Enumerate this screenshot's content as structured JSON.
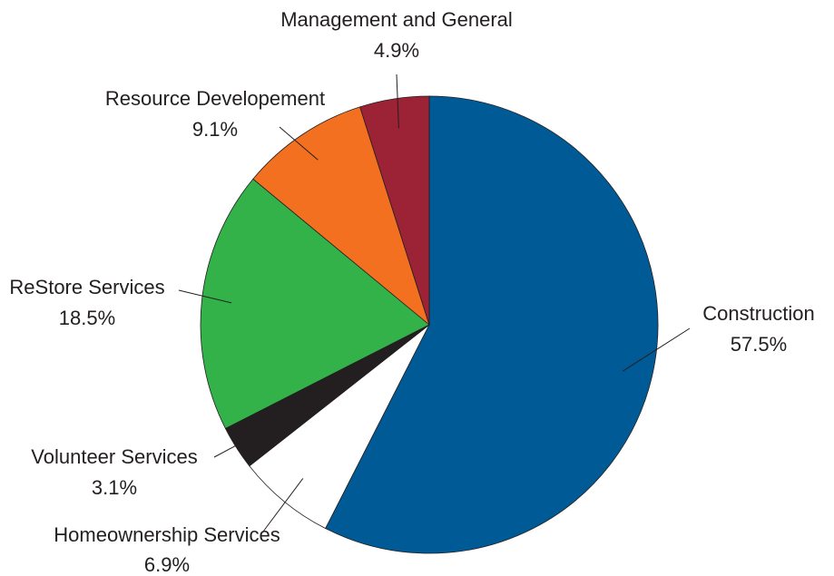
{
  "chart_data": {
    "type": "pie",
    "title": "",
    "start": "12 o'clock",
    "direction": "clockwise",
    "legend": "none",
    "slices": [
      {
        "label": "Construction",
        "value": 57.5,
        "value_label": "57.5%",
        "color": "#005a96"
      },
      {
        "label": "Homeownership Services",
        "value": 6.9,
        "value_label": "6.9%",
        "color": "#ffffff"
      },
      {
        "label": "Volunteer Services",
        "value": 3.1,
        "value_label": "3.1%",
        "color": "#231f20"
      },
      {
        "label": "ReStore Services",
        "value": 18.5,
        "value_label": "18.5%",
        "color": "#33b24a"
      },
      {
        "label": "Resource Developement",
        "value": 9.1,
        "value_label": "9.1%",
        "color": "#f37021"
      },
      {
        "label": "Management and General",
        "value": 4.9,
        "value_label": "4.9%",
        "color": "#9b2335"
      }
    ]
  }
}
